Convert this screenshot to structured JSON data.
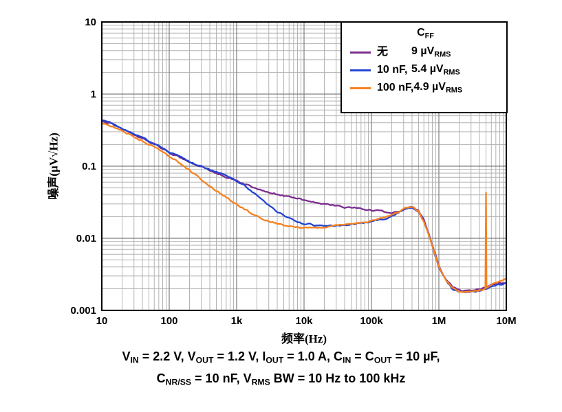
{
  "page": {
    "background": "#ffffff"
  },
  "chart_data": {
    "type": "line",
    "title": "",
    "xlabel": "频率(Hz)",
    "ylabel": "噪声(µV√Hz)",
    "xscale": "log",
    "yscale": "log",
    "xlim": [
      10,
      10000000
    ],
    "ylim": [
      0.001,
      10
    ],
    "grid": {
      "on": true,
      "major_color": "#7f7f7f",
      "minor_color": "#b3b3b3",
      "border_color": "#000000"
    },
    "x_ticks": [
      {
        "v": 10,
        "label": "10"
      },
      {
        "v": 100,
        "label": "100"
      },
      {
        "v": 1000,
        "label": "1k"
      },
      {
        "v": 10000,
        "label": "10k"
      },
      {
        "v": 100000,
        "label": "100k"
      },
      {
        "v": 1000000,
        "label": "1M"
      },
      {
        "v": 10000000,
        "label": "10M"
      }
    ],
    "y_ticks": [
      {
        "v": 10,
        "label": "10"
      },
      {
        "v": 1,
        "label": "1"
      },
      {
        "v": 0.1,
        "label": "0.1"
      },
      {
        "v": 0.01,
        "label": "0.01"
      },
      {
        "v": 0.001,
        "label": "0.001"
      }
    ],
    "legend": {
      "position": "top-right",
      "title": [
        {
          "t": "C"
        },
        {
          "s": "FF"
        }
      ],
      "entries": [
        {
          "color": "#7B2D8E",
          "cap": "无",
          "value": [
            {
              "t": "9 µV"
            },
            {
              "s": "RMS"
            }
          ]
        },
        {
          "color": "#2244D4",
          "cap": "10 nF,",
          "value": [
            {
              "t": "5.4 µV"
            },
            {
              "s": "RMS"
            }
          ]
        },
        {
          "color": "#F58220",
          "cap": "100 nF,",
          "value": [
            {
              "t": "4.9 µV"
            },
            {
              "s": "RMS"
            }
          ]
        }
      ]
    },
    "series": [
      {
        "name": "无 9 µVRMS",
        "color": "#7B2D8E",
        "points": [
          [
            10,
            0.42
          ],
          [
            13,
            0.4
          ],
          [
            16,
            0.36
          ],
          [
            20,
            0.33
          ],
          [
            25,
            0.3
          ],
          [
            32,
            0.27
          ],
          [
            40,
            0.245
          ],
          [
            50,
            0.22
          ],
          [
            63,
            0.2
          ],
          [
            80,
            0.175
          ],
          [
            100,
            0.155
          ],
          [
            130,
            0.138
          ],
          [
            160,
            0.125
          ],
          [
            200,
            0.113
          ],
          [
            250,
            0.104
          ],
          [
            320,
            0.096
          ],
          [
            400,
            0.088
          ],
          [
            500,
            0.081
          ],
          [
            630,
            0.074
          ],
          [
            800,
            0.068
          ],
          [
            1000,
            0.062
          ],
          [
            1300,
            0.057
          ],
          [
            1600,
            0.053
          ],
          [
            2000,
            0.049
          ],
          [
            2500,
            0.046
          ],
          [
            3200,
            0.043
          ],
          [
            4000,
            0.041
          ],
          [
            5000,
            0.039
          ],
          [
            6300,
            0.037
          ],
          [
            8000,
            0.0355
          ],
          [
            10000,
            0.034
          ],
          [
            13000,
            0.032
          ],
          [
            16000,
            0.031
          ],
          [
            20000,
            0.03
          ],
          [
            25000,
            0.029
          ],
          [
            32000,
            0.028
          ],
          [
            40000,
            0.027
          ],
          [
            50000,
            0.0265
          ],
          [
            63000,
            0.026
          ],
          [
            80000,
            0.025
          ],
          [
            100000,
            0.0245
          ],
          [
            130000,
            0.024
          ],
          [
            160000,
            0.023
          ],
          [
            200000,
            0.0225
          ],
          [
            250000,
            0.0235
          ],
          [
            320000,
            0.026
          ],
          [
            400000,
            0.027
          ],
          [
            500000,
            0.024
          ],
          [
            600000,
            0.018
          ],
          [
            700000,
            0.012
          ],
          [
            800000,
            0.008
          ],
          [
            1000000,
            0.0042
          ],
          [
            1300000,
            0.0026
          ],
          [
            1600000,
            0.0021
          ],
          [
            2000000,
            0.0019
          ],
          [
            2500000,
            0.00185
          ],
          [
            3200000,
            0.0019
          ],
          [
            4000000,
            0.002
          ],
          [
            5000000,
            0.0021
          ],
          [
            6300000,
            0.0023
          ],
          [
            8000000,
            0.0024
          ],
          [
            10000000,
            0.0024
          ]
        ]
      },
      {
        "name": "10 nF, 5.4 µVRMS",
        "color": "#2244D4",
        "points": [
          [
            10,
            0.43
          ],
          [
            13,
            0.4
          ],
          [
            16,
            0.36
          ],
          [
            20,
            0.33
          ],
          [
            25,
            0.3
          ],
          [
            32,
            0.27
          ],
          [
            40,
            0.245
          ],
          [
            50,
            0.22
          ],
          [
            63,
            0.2
          ],
          [
            80,
            0.175
          ],
          [
            100,
            0.157
          ],
          [
            130,
            0.14
          ],
          [
            160,
            0.127
          ],
          [
            200,
            0.115
          ],
          [
            250,
            0.106
          ],
          [
            320,
            0.098
          ],
          [
            400,
            0.09
          ],
          [
            500,
            0.084
          ],
          [
            630,
            0.077
          ],
          [
            800,
            0.07
          ],
          [
            1000,
            0.063
          ],
          [
            1300,
            0.054
          ],
          [
            1600,
            0.046
          ],
          [
            2000,
            0.039
          ],
          [
            2500,
            0.033
          ],
          [
            3200,
            0.0275
          ],
          [
            4000,
            0.0235
          ],
          [
            5000,
            0.0205
          ],
          [
            6300,
            0.0185
          ],
          [
            8000,
            0.017
          ],
          [
            10000,
            0.016
          ],
          [
            13000,
            0.0155
          ],
          [
            16000,
            0.015
          ],
          [
            20000,
            0.0148
          ],
          [
            25000,
            0.0148
          ],
          [
            32000,
            0.015
          ],
          [
            40000,
            0.0152
          ],
          [
            50000,
            0.0155
          ],
          [
            63000,
            0.016
          ],
          [
            80000,
            0.0165
          ],
          [
            100000,
            0.017
          ],
          [
            130000,
            0.018
          ],
          [
            160000,
            0.019
          ],
          [
            200000,
            0.0205
          ],
          [
            250000,
            0.0225
          ],
          [
            320000,
            0.0255
          ],
          [
            400000,
            0.0265
          ],
          [
            500000,
            0.023
          ],
          [
            600000,
            0.017
          ],
          [
            700000,
            0.0115
          ],
          [
            800000,
            0.0078
          ],
          [
            1000000,
            0.004
          ],
          [
            1300000,
            0.0025
          ],
          [
            1600000,
            0.002
          ],
          [
            2000000,
            0.0018
          ],
          [
            2500000,
            0.0018
          ],
          [
            3200000,
            0.00185
          ],
          [
            4000000,
            0.0019
          ],
          [
            5000000,
            0.002
          ],
          [
            6300000,
            0.0022
          ],
          [
            8000000,
            0.0023
          ],
          [
            10000000,
            0.0024
          ]
        ]
      },
      {
        "name": "100 nF, 4.9 µVRMS",
        "color": "#F58220",
        "points": [
          [
            10,
            0.4
          ],
          [
            13,
            0.37
          ],
          [
            16,
            0.34
          ],
          [
            20,
            0.31
          ],
          [
            25,
            0.28
          ],
          [
            32,
            0.25
          ],
          [
            40,
            0.225
          ],
          [
            50,
            0.2
          ],
          [
            63,
            0.18
          ],
          [
            80,
            0.158
          ],
          [
            100,
            0.138
          ],
          [
            130,
            0.118
          ],
          [
            160,
            0.101
          ],
          [
            200,
            0.088
          ],
          [
            250,
            0.075
          ],
          [
            320,
            0.063
          ],
          [
            400,
            0.054
          ],
          [
            500,
            0.046
          ],
          [
            630,
            0.04
          ],
          [
            800,
            0.034
          ],
          [
            1000,
            0.0295
          ],
          [
            1300,
            0.0255
          ],
          [
            1600,
            0.0225
          ],
          [
            2000,
            0.0205
          ],
          [
            2500,
            0.0185
          ],
          [
            3200,
            0.017
          ],
          [
            4000,
            0.016
          ],
          [
            5000,
            0.0152
          ],
          [
            6300,
            0.0147
          ],
          [
            8000,
            0.0143
          ],
          [
            10000,
            0.014
          ],
          [
            13000,
            0.014
          ],
          [
            16000,
            0.014
          ],
          [
            20000,
            0.0142
          ],
          [
            25000,
            0.0145
          ],
          [
            32000,
            0.015
          ],
          [
            40000,
            0.0155
          ],
          [
            50000,
            0.016
          ],
          [
            63000,
            0.0165
          ],
          [
            80000,
            0.017
          ],
          [
            100000,
            0.0175
          ],
          [
            130000,
            0.0185
          ],
          [
            160000,
            0.0195
          ],
          [
            200000,
            0.021
          ],
          [
            250000,
            0.023
          ],
          [
            320000,
            0.026
          ],
          [
            400000,
            0.027
          ],
          [
            500000,
            0.0235
          ],
          [
            600000,
            0.017
          ],
          [
            700000,
            0.0115
          ],
          [
            800000,
            0.0078
          ],
          [
            1000000,
            0.004
          ],
          [
            1300000,
            0.0025
          ],
          [
            1600000,
            0.002
          ],
          [
            2000000,
            0.0018
          ],
          [
            2500000,
            0.0018
          ],
          [
            3200000,
            0.00185
          ],
          [
            4000000,
            0.0019
          ],
          [
            4700000,
            0.00195
          ],
          [
            4900000,
            0.002
          ],
          [
            5000000,
            0.042
          ],
          [
            5100000,
            0.002
          ],
          [
            6300000,
            0.0023
          ],
          [
            8000000,
            0.0025
          ],
          [
            10000000,
            0.0028
          ]
        ]
      }
    ]
  },
  "caption": {
    "line1": [
      {
        "t": "V"
      },
      {
        "s": "IN"
      },
      {
        "t": " = 2.2 V, V"
      },
      {
        "s": "OUT"
      },
      {
        "t": " = 1.2 V, I"
      },
      {
        "s": "OUT"
      },
      {
        "t": " = 1.0 A, C"
      },
      {
        "s": "IN"
      },
      {
        "t": " = C"
      },
      {
        "s": "OUT"
      },
      {
        "t": " = 10 µF,"
      }
    ],
    "line2": [
      {
        "t": "C"
      },
      {
        "s": "NR/SS"
      },
      {
        "t": " = 10 nF, V"
      },
      {
        "s": "RMS"
      },
      {
        "t": " BW = 10 Hz to 100 kHz"
      }
    ]
  }
}
